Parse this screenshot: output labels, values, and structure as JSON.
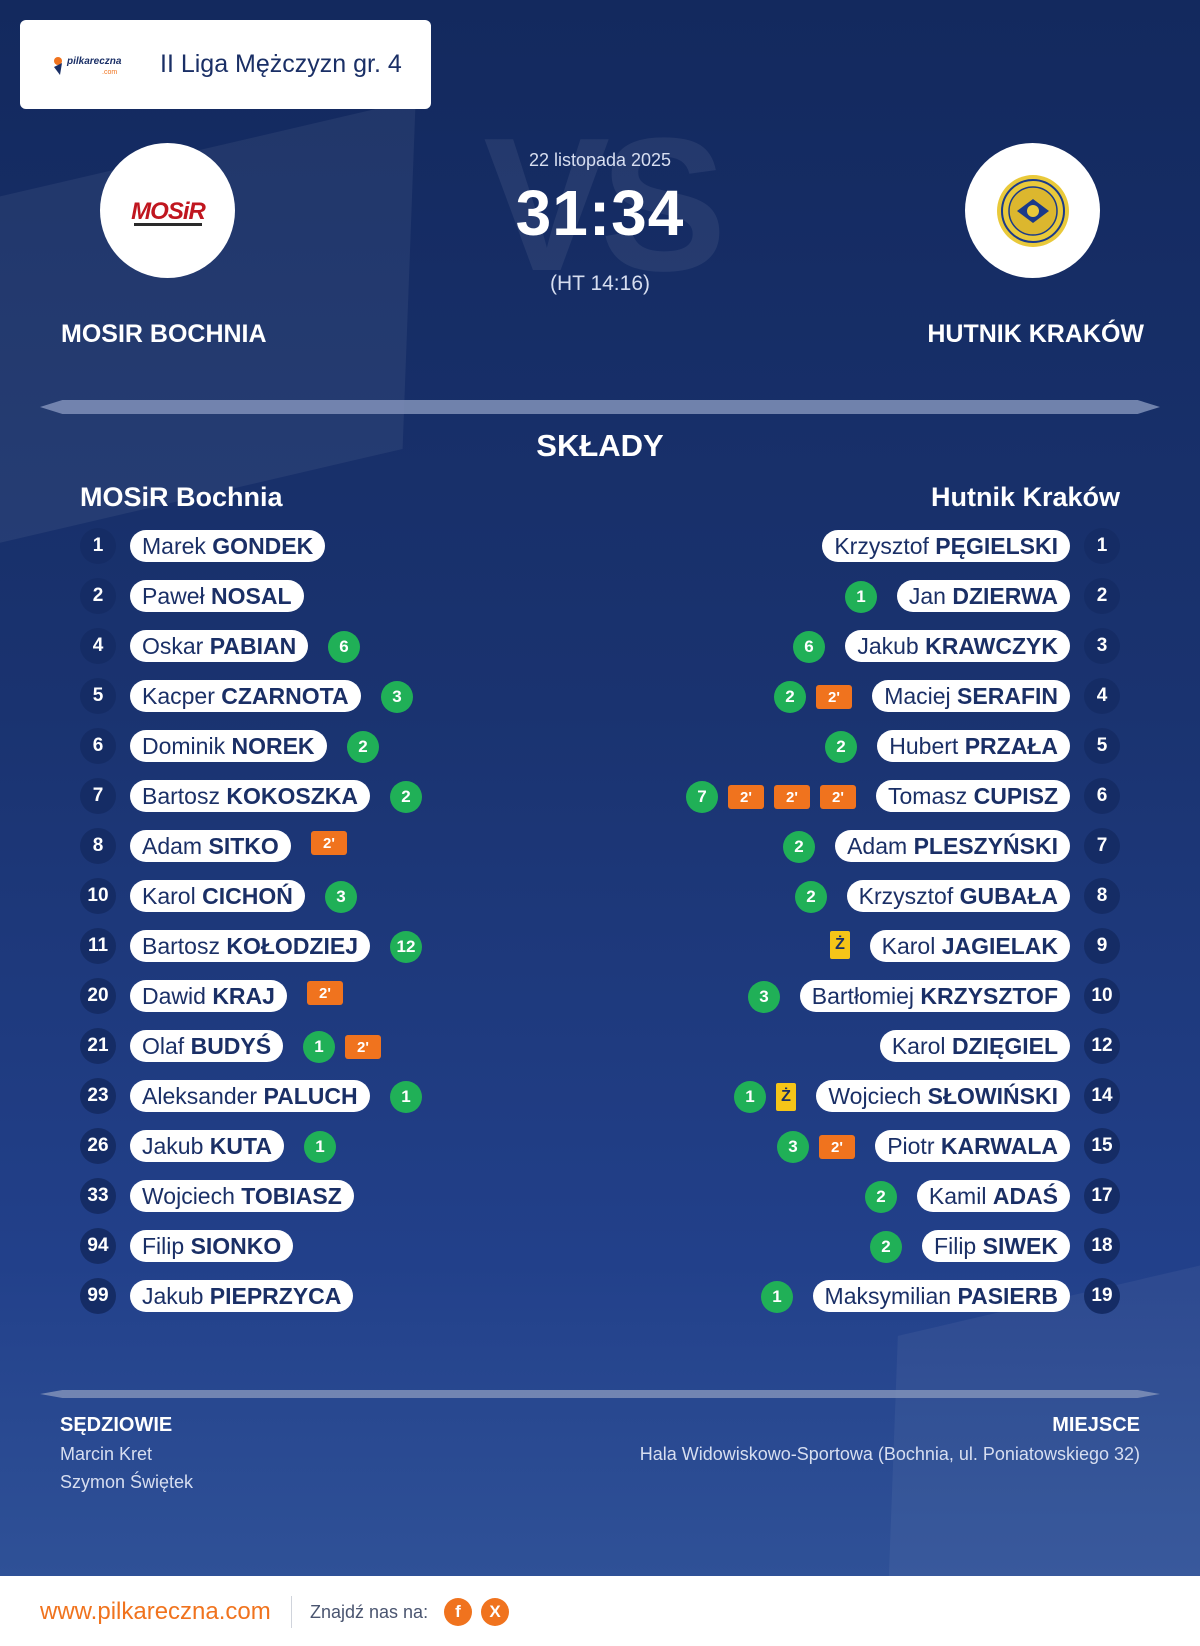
{
  "league": {
    "brand": "pilkareczna",
    "brand_sub": ".com",
    "name": "II Liga Mężczyzn gr. 4"
  },
  "match": {
    "date": "22 listopada 2025",
    "score": "31:34",
    "halftime": "(HT 14:16)",
    "vs": "VS"
  },
  "home": {
    "name": "MOSIR BOCHNIA",
    "logo_text": "MOSiR"
  },
  "away": {
    "name": "HUTNIK KRAKÓW"
  },
  "lineups": {
    "title": "SKŁADY",
    "home_title": "MOSiR Bochnia",
    "away_title": "Hutnik Kraków",
    "home_players": [
      {
        "num": "1",
        "first": "Marek",
        "last": "GONDEK",
        "events": []
      },
      {
        "num": "2",
        "first": "Paweł",
        "last": "NOSAL",
        "events": []
      },
      {
        "num": "4",
        "first": "Oskar",
        "last": "PABIAN",
        "events": [
          {
            "t": "goal",
            "v": "6"
          }
        ]
      },
      {
        "num": "5",
        "first": "Kacper",
        "last": "CZARNOTA",
        "events": [
          {
            "t": "goal",
            "v": "3"
          }
        ]
      },
      {
        "num": "6",
        "first": "Dominik",
        "last": "NOREK",
        "events": [
          {
            "t": "goal",
            "v": "2"
          }
        ]
      },
      {
        "num": "7",
        "first": "Bartosz",
        "last": "KOKOSZKA",
        "events": [
          {
            "t": "goal",
            "v": "2"
          }
        ]
      },
      {
        "num": "8",
        "first": "Adam",
        "last": "SITKO",
        "events": [
          {
            "t": "susp",
            "v": "2'"
          }
        ]
      },
      {
        "num": "10",
        "first": "Karol",
        "last": "CICHOŃ",
        "events": [
          {
            "t": "goal",
            "v": "3"
          }
        ]
      },
      {
        "num": "11",
        "first": "Bartosz",
        "last": "KOŁODZIEJ",
        "events": [
          {
            "t": "goal",
            "v": "12"
          }
        ]
      },
      {
        "num": "20",
        "first": "Dawid",
        "last": "KRAJ",
        "events": [
          {
            "t": "susp",
            "v": "2'"
          }
        ]
      },
      {
        "num": "21",
        "first": "Olaf",
        "last": "BUDYŚ",
        "events": [
          {
            "t": "goal",
            "v": "1"
          },
          {
            "t": "susp",
            "v": "2'"
          }
        ]
      },
      {
        "num": "23",
        "first": "Aleksander",
        "last": "PALUCH",
        "events": [
          {
            "t": "goal",
            "v": "1"
          }
        ]
      },
      {
        "num": "26",
        "first": "Jakub",
        "last": "KUTA",
        "events": [
          {
            "t": "goal",
            "v": "1"
          }
        ]
      },
      {
        "num": "33",
        "first": "Wojciech",
        "last": "TOBIASZ",
        "events": []
      },
      {
        "num": "94",
        "first": "Filip",
        "last": "SIONKO",
        "events": []
      },
      {
        "num": "99",
        "first": "Jakub",
        "last": "PIEPRZYCA",
        "events": []
      }
    ],
    "away_players": [
      {
        "num": "1",
        "first": "Krzysztof",
        "last": "PĘGIELSKI",
        "events": []
      },
      {
        "num": "2",
        "first": "Jan",
        "last": "DZIERWA",
        "events": [
          {
            "t": "goal",
            "v": "1"
          }
        ]
      },
      {
        "num": "3",
        "first": "Jakub",
        "last": "KRAWCZYK",
        "events": [
          {
            "t": "goal",
            "v": "6"
          }
        ]
      },
      {
        "num": "4",
        "first": "Maciej",
        "last": "SERAFIN",
        "events": [
          {
            "t": "goal",
            "v": "2"
          },
          {
            "t": "susp",
            "v": "2'"
          }
        ]
      },
      {
        "num": "5",
        "first": "Hubert",
        "last": "PRZAŁA",
        "events": [
          {
            "t": "goal",
            "v": "2"
          }
        ]
      },
      {
        "num": "6",
        "first": "Tomasz",
        "last": "CUPISZ",
        "events": [
          {
            "t": "goal",
            "v": "7"
          },
          {
            "t": "susp",
            "v": "2'"
          },
          {
            "t": "susp",
            "v": "2'"
          },
          {
            "t": "susp",
            "v": "2'"
          }
        ]
      },
      {
        "num": "7",
        "first": "Adam",
        "last": "PLESZYŃSKI",
        "events": [
          {
            "t": "goal",
            "v": "2"
          }
        ]
      },
      {
        "num": "8",
        "first": "Krzysztof",
        "last": "GUBAŁA",
        "events": [
          {
            "t": "goal",
            "v": "2"
          }
        ]
      },
      {
        "num": "9",
        "first": "Karol",
        "last": "JAGIELAK",
        "events": [
          {
            "t": "yellow",
            "v": "Ż"
          }
        ]
      },
      {
        "num": "10",
        "first": "Bartłomiej",
        "last": "KRZYSZTOF",
        "events": [
          {
            "t": "goal",
            "v": "3"
          }
        ]
      },
      {
        "num": "12",
        "first": "Karol",
        "last": "DZIĘGIEL",
        "events": []
      },
      {
        "num": "14",
        "first": "Wojciech",
        "last": "SŁOWIŃSKI",
        "events": [
          {
            "t": "goal",
            "v": "1"
          },
          {
            "t": "yellow",
            "v": "Ż"
          }
        ]
      },
      {
        "num": "15",
        "first": "Piotr",
        "last": "KARWALA",
        "events": [
          {
            "t": "goal",
            "v": "3"
          },
          {
            "t": "susp",
            "v": "2'"
          }
        ]
      },
      {
        "num": "17",
        "first": "Kamil",
        "last": "ADAŚ",
        "events": [
          {
            "t": "goal",
            "v": "2"
          }
        ]
      },
      {
        "num": "18",
        "first": "Filip",
        "last": "SIWEK",
        "events": [
          {
            "t": "goal",
            "v": "2"
          }
        ]
      },
      {
        "num": "19",
        "first": "Maksymilian",
        "last": "PASIERB",
        "events": [
          {
            "t": "goal",
            "v": "1"
          }
        ]
      }
    ]
  },
  "officials": {
    "title": "SĘDZIOWIE",
    "names": [
      "Marcin Kret",
      "Szymon Świętek"
    ]
  },
  "venue": {
    "title": "MIEJSCE",
    "name": "Hala Widowiskowo-Sportowa (Bochnia, ul. Poniatowskiego 32)"
  },
  "footer": {
    "site": "www.pilkareczna.com",
    "find_us": "Znajdź nas na:",
    "social": [
      {
        "icon": "facebook-icon",
        "label": "f"
      },
      {
        "icon": "x-icon",
        "label": "X"
      }
    ]
  },
  "colors": {
    "background": "#13295e",
    "goal": "#20b057",
    "suspension": "#f0731e",
    "yellow_card": "#f5c518",
    "accent": "#f0731e"
  }
}
